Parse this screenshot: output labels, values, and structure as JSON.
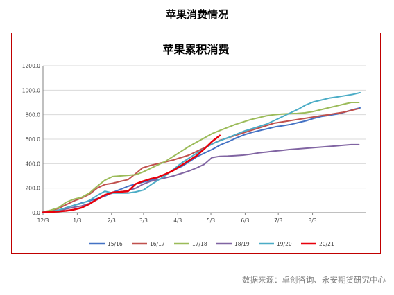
{
  "page_title": "苹果消费情况",
  "source_note": "数据来源：卓创咨询、永安期货研究中心",
  "colors": {
    "frame": "#c00000",
    "grid": "#d9d9d9",
    "axis": "#808080"
  },
  "chart_data": {
    "type": "line",
    "title": "苹果累积消费",
    "xlabel": "",
    "ylabel": "",
    "ylim": [
      0,
      1200
    ],
    "yticks": [
      "0.0",
      "200.0",
      "400.0",
      "600.0",
      "800.0",
      "1000.0",
      "1200.0"
    ],
    "xticks": [
      "12/3",
      "1/3",
      "2/3",
      "3/3",
      "4/3",
      "5/3",
      "6/3",
      "7/3",
      "8/3"
    ],
    "grid": "horizontal",
    "legend": "bottom",
    "series": [
      {
        "name": "15/16",
        "color": "#4472c4",
        "x": [
          "2015-12-03",
          "2015-12-10",
          "2015-12-17",
          "2015-12-24",
          "2015-12-31",
          "2016-01-07",
          "2016-01-14",
          "2016-01-21",
          "2016-01-28",
          "2016-02-04",
          "2016-02-11",
          "2016-02-18",
          "2016-02-25",
          "2016-03-03",
          "2016-03-10",
          "2016-03-17",
          "2016-03-24",
          "2016-03-31",
          "2016-04-07",
          "2016-04-14",
          "2016-04-21",
          "2016-04-28",
          "2016-05-05",
          "2016-05-12",
          "2016-05-19",
          "2016-05-26",
          "2016-06-02",
          "2016-06-09",
          "2016-06-16",
          "2016-06-23",
          "2016-06-30",
          "2016-07-07",
          "2016-07-14",
          "2016-07-21",
          "2016-07-28",
          "2016-08-04",
          "2016-08-11",
          "2016-08-18",
          "2016-08-25",
          "2016-09-01",
          "2016-09-08",
          "2016-09-15"
        ],
        "y": [
          5,
          10,
          20,
          40,
          60,
          80,
          95,
          115,
          135,
          165,
          190,
          215,
          235,
          250,
          265,
          290,
          320,
          350,
          380,
          420,
          460,
          490,
          520,
          555,
          580,
          610,
          635,
          655,
          670,
          685,
          700,
          710,
          720,
          735,
          750,
          770,
          785,
          795,
          805,
          820,
          840,
          855
        ]
      },
      {
        "name": "16/17",
        "color": "#c0504d",
        "x": [
          "2016-12-03",
          "2016-12-10",
          "2016-12-17",
          "2016-12-24",
          "2016-12-31",
          "2017-01-07",
          "2017-01-14",
          "2017-01-21",
          "2017-01-28",
          "2017-02-04",
          "2017-02-11",
          "2017-02-18",
          "2017-02-25",
          "2017-03-03",
          "2017-03-10",
          "2017-03-17",
          "2017-03-24",
          "2017-03-31",
          "2017-04-07",
          "2017-04-14",
          "2017-04-21",
          "2017-04-28",
          "2017-05-05",
          "2017-05-12",
          "2017-05-19",
          "2017-05-26",
          "2017-06-02",
          "2017-06-09",
          "2017-06-16",
          "2017-06-23",
          "2017-06-30",
          "2017-07-07",
          "2017-07-14",
          "2017-07-21",
          "2017-07-28",
          "2017-08-04",
          "2017-08-11",
          "2017-08-18",
          "2017-08-25",
          "2017-09-01",
          "2017-09-08",
          "2017-09-15"
        ],
        "y": [
          5,
          15,
          35,
          65,
          95,
          120,
          150,
          200,
          230,
          240,
          255,
          270,
          320,
          365,
          385,
          400,
          415,
          430,
          450,
          470,
          500,
          530,
          560,
          590,
          610,
          630,
          650,
          670,
          690,
          710,
          730,
          740,
          750,
          760,
          770,
          780,
          790,
          800,
          810,
          820,
          835,
          850
        ]
      },
      {
        "name": "17/18",
        "color": "#9bbb59",
        "x": [
          "2017-12-03",
          "2017-12-10",
          "2017-12-17",
          "2017-12-24",
          "2017-12-31",
          "2018-01-07",
          "2018-01-14",
          "2018-01-21",
          "2018-01-28",
          "2018-02-04",
          "2018-02-11",
          "2018-02-18",
          "2018-02-25",
          "2018-03-03",
          "2018-03-10",
          "2018-03-17",
          "2018-03-24",
          "2018-03-31",
          "2018-04-07",
          "2018-04-14",
          "2018-04-21",
          "2018-04-28",
          "2018-05-05",
          "2018-05-12",
          "2018-05-19",
          "2018-05-26",
          "2018-06-02",
          "2018-06-09",
          "2018-06-16",
          "2018-06-23",
          "2018-06-30",
          "2018-07-07",
          "2018-07-14",
          "2018-07-21",
          "2018-07-28",
          "2018-08-04",
          "2018-08-11",
          "2018-08-18",
          "2018-08-25",
          "2018-09-01",
          "2018-09-08",
          "2018-09-15"
        ],
        "y": [
          5,
          20,
          40,
          85,
          110,
          125,
          160,
          215,
          265,
          295,
          300,
          305,
          310,
          330,
          360,
          390,
          420,
          460,
          500,
          540,
          575,
          610,
          645,
          670,
          695,
          720,
          740,
          760,
          775,
          790,
          800,
          805,
          808,
          810,
          815,
          825,
          840,
          855,
          870,
          885,
          900,
          900
        ]
      },
      {
        "name": "18/19",
        "color": "#8064a2",
        "x": [
          "2018-12-03",
          "2018-12-10",
          "2018-12-17",
          "2018-12-24",
          "2018-12-31",
          "2019-01-07",
          "2019-01-14",
          "2019-01-21",
          "2019-01-28",
          "2019-02-04",
          "2019-02-11",
          "2019-02-18",
          "2019-02-25",
          "2019-03-03",
          "2019-03-10",
          "2019-03-17",
          "2019-03-24",
          "2019-03-31",
          "2019-04-07",
          "2019-04-14",
          "2019-04-21",
          "2019-04-28",
          "2019-05-05",
          "2019-05-12",
          "2019-05-19",
          "2019-05-26",
          "2019-06-02",
          "2019-06-09",
          "2019-06-16",
          "2019-06-23",
          "2019-06-30",
          "2019-07-07",
          "2019-07-14",
          "2019-07-21",
          "2019-07-28",
          "2019-08-04",
          "2019-08-11",
          "2019-08-18",
          "2019-08-25",
          "2019-09-01",
          "2019-09-08",
          "2019-09-15"
        ],
        "y": [
          3,
          8,
          15,
          30,
          45,
          55,
          75,
          105,
          140,
          160,
          170,
          180,
          200,
          230,
          255,
          270,
          285,
          300,
          320,
          340,
          365,
          395,
          450,
          460,
          462,
          465,
          470,
          478,
          488,
          495,
          502,
          508,
          515,
          520,
          525,
          530,
          535,
          540,
          545,
          550,
          555,
          555
        ]
      },
      {
        "name": "19/20",
        "color": "#4bacc6",
        "x": [
          "2019-12-03",
          "2019-12-10",
          "2019-12-17",
          "2019-12-24",
          "2019-12-31",
          "2020-01-07",
          "2020-01-14",
          "2020-01-21",
          "2020-01-28",
          "2020-02-04",
          "2020-02-11",
          "2020-02-18",
          "2020-02-25",
          "2020-03-03",
          "2020-03-10",
          "2020-03-17",
          "2020-03-24",
          "2020-03-31",
          "2020-04-07",
          "2020-04-14",
          "2020-04-21",
          "2020-04-28",
          "2020-05-05",
          "2020-05-12",
          "2020-05-19",
          "2020-05-26",
          "2020-06-02",
          "2020-06-09",
          "2020-06-16",
          "2020-06-23",
          "2020-06-30",
          "2020-07-07",
          "2020-07-14",
          "2020-07-21",
          "2020-07-28",
          "2020-08-04",
          "2020-08-11",
          "2020-08-18",
          "2020-08-25",
          "2020-09-01",
          "2020-09-08",
          "2020-09-15"
        ],
        "y": [
          5,
          10,
          20,
          40,
          60,
          75,
          100,
          140,
          175,
          160,
          160,
          160,
          170,
          185,
          230,
          270,
          310,
          360,
          410,
          450,
          490,
          530,
          565,
          590,
          615,
          640,
          665,
          685,
          705,
          725,
          755,
          785,
          815,
          845,
          880,
          905,
          920,
          935,
          945,
          955,
          965,
          980
        ]
      },
      {
        "name": "20/21",
        "color": "#e8000b",
        "x": [
          "2020-12-03",
          "2020-12-10",
          "2020-12-17",
          "2020-12-24",
          "2020-12-31",
          "2021-01-07",
          "2021-01-14",
          "2021-01-21",
          "2021-01-28",
          "2021-02-04",
          "2021-02-11",
          "2021-02-18",
          "2021-02-25",
          "2021-03-03",
          "2021-03-10",
          "2021-03-17",
          "2021-03-24",
          "2021-03-31",
          "2021-04-07",
          "2021-04-14",
          "2021-04-21",
          "2021-04-28",
          "2021-05-05",
          "2021-05-12"
        ],
        "y": [
          3,
          5,
          10,
          15,
          25,
          40,
          70,
          110,
          145,
          165,
          170,
          175,
          235,
          255,
          275,
          290,
          315,
          345,
          385,
          425,
          465,
          520,
          580,
          630
        ]
      }
    ]
  }
}
